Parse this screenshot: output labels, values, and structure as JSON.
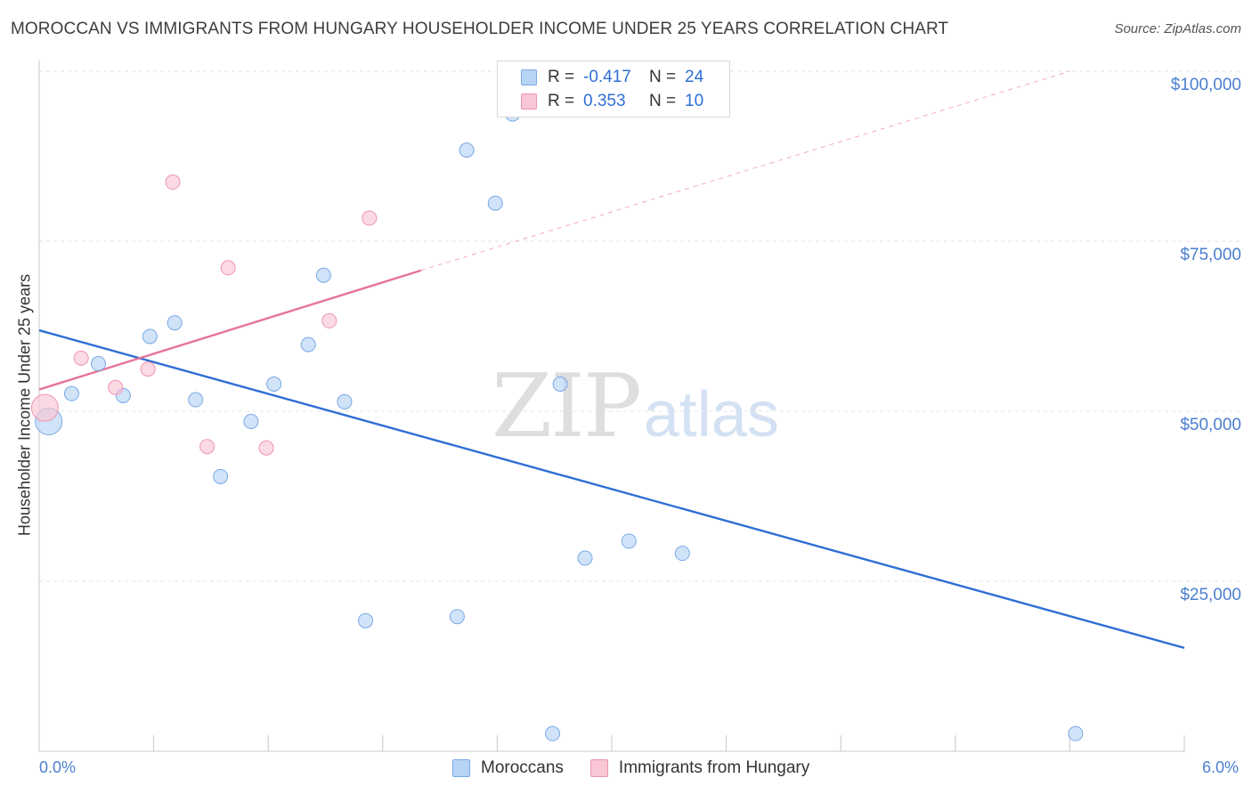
{
  "header": {
    "title": "MOROCCAN VS IMMIGRANTS FROM HUNGARY HOUSEHOLDER INCOME UNDER 25 YEARS CORRELATION CHART",
    "source": "Source: ZipAtlas.com"
  },
  "watermark": {
    "zip": "ZIP",
    "atlas": "atlas"
  },
  "legend": {
    "rows": [
      {
        "r_label": "R =",
        "r_value": "-0.417",
        "n_label": "N =",
        "n_value": "24",
        "color": "#b8d4f5",
        "border": "#7aa8e6"
      },
      {
        "r_label": "R =",
        "r_value": "0.353",
        "n_label": "N =",
        "n_value": "10",
        "color": "#f9c6d5",
        "border": "#ee94af"
      }
    ]
  },
  "bottom_legend": {
    "items": [
      {
        "label": "Moroccans",
        "color": "#b8d4f5",
        "border": "#7aa8e6"
      },
      {
        "label": "Immigrants from Hungary",
        "color": "#f9c6d5",
        "border": "#ee94af"
      }
    ]
  },
  "chart_data": {
    "type": "scatter",
    "title": "MOROCCAN VS IMMIGRANTS FROM HUNGARY HOUSEHOLDER INCOME UNDER 25 YEARS CORRELATION CHART",
    "xlabel": "",
    "ylabel": "Householder Income Under 25 years",
    "xlim": [
      0,
      6
    ],
    "ylim": [
      0,
      102000
    ],
    "x_tick_labels": [
      "0.0%",
      "6.0%"
    ],
    "y_ticks": [
      25000,
      50000,
      75000,
      100000
    ],
    "y_tick_labels": [
      "$25,000",
      "$50,000",
      "$75,000",
      "$100,000"
    ],
    "grid": true,
    "series": [
      {
        "name": "Moroccans",
        "color": "#b8d4f5",
        "stroke": "#7aa8e6",
        "trend_color": "#2e6fd6",
        "points": [
          {
            "x": 0.05,
            "y": 48500,
            "big": true
          },
          {
            "x": 0.17,
            "y": 52600
          },
          {
            "x": 0.31,
            "y": 57000
          },
          {
            "x": 0.44,
            "y": 52300
          },
          {
            "x": 0.58,
            "y": 61000
          },
          {
            "x": 0.71,
            "y": 63000
          },
          {
            "x": 0.82,
            "y": 51700
          },
          {
            "x": 0.95,
            "y": 40400
          },
          {
            "x": 1.11,
            "y": 48500
          },
          {
            "x": 1.23,
            "y": 54000
          },
          {
            "x": 1.41,
            "y": 59800
          },
          {
            "x": 1.49,
            "y": 70000
          },
          {
            "x": 1.6,
            "y": 51400
          },
          {
            "x": 1.71,
            "y": 19200
          },
          {
            "x": 2.19,
            "y": 19800
          },
          {
            "x": 2.24,
            "y": 88400
          },
          {
            "x": 2.39,
            "y": 80600
          },
          {
            "x": 2.48,
            "y": 93700
          },
          {
            "x": 2.69,
            "y": 2600
          },
          {
            "x": 2.73,
            "y": 54000
          },
          {
            "x": 2.86,
            "y": 28400
          },
          {
            "x": 3.09,
            "y": 30900
          },
          {
            "x": 3.37,
            "y": 29100
          },
          {
            "x": 5.43,
            "y": 2600
          }
        ],
        "trend": {
          "x0": 0.0,
          "y0": 61900,
          "x1": 6.0,
          "y1": 15200
        }
      },
      {
        "name": "Immigrants from Hungary",
        "color": "#f9c6d5",
        "stroke": "#ee94af",
        "trend_color": "#e6749a",
        "points": [
          {
            "x": 0.03,
            "y": 50500,
            "big": true
          },
          {
            "x": 0.22,
            "y": 57800
          },
          {
            "x": 0.4,
            "y": 53500
          },
          {
            "x": 0.57,
            "y": 56200
          },
          {
            "x": 0.7,
            "y": 83700
          },
          {
            "x": 0.88,
            "y": 44800
          },
          {
            "x": 0.99,
            "y": 71100
          },
          {
            "x": 1.19,
            "y": 44600
          },
          {
            "x": 1.52,
            "y": 63300
          },
          {
            "x": 1.73,
            "y": 78400
          }
        ],
        "trend": {
          "x0": 0.0,
          "y0": 53200,
          "x1": 2.0,
          "y1": 70700
        },
        "trend_dashed_to": {
          "x": 5.4,
          "y": 100000
        }
      }
    ]
  }
}
